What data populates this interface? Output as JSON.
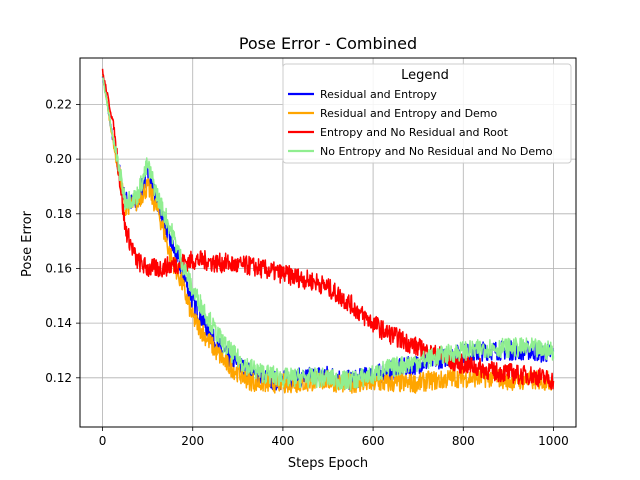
{
  "chart_data": {
    "type": "line",
    "title": "Pose Error - Combined",
    "xlabel": "Steps Epoch",
    "ylabel": "Pose Error",
    "xlim": [
      -50,
      1050
    ],
    "ylim": [
      0.102,
      0.237
    ],
    "xticks": [
      0,
      200,
      400,
      600,
      800,
      1000
    ],
    "yticks": [
      0.12,
      0.14,
      0.16,
      0.18,
      0.2,
      0.22
    ],
    "xtick_labels": [
      "0",
      "200",
      "400",
      "600",
      "800",
      "1000"
    ],
    "ytick_labels": [
      "0.12",
      "0.14",
      "0.16",
      "0.18",
      "0.20",
      "0.22"
    ],
    "grid": true,
    "legend": {
      "title": "Legend",
      "placement": "top-right"
    },
    "series": [
      {
        "name": "Residual and Entropy",
        "color": "#0000ff",
        "x": [
          0,
          25,
          50,
          75,
          100,
          125,
          150,
          175,
          200,
          225,
          250,
          275,
          300,
          325,
          350,
          375,
          400,
          425,
          450,
          475,
          500,
          525,
          550,
          575,
          600,
          625,
          650,
          675,
          700,
          725,
          750,
          775,
          800,
          825,
          850,
          875,
          900,
          925,
          950,
          975,
          1000
        ],
        "y": [
          0.231,
          0.205,
          0.185,
          0.183,
          0.195,
          0.183,
          0.17,
          0.16,
          0.148,
          0.14,
          0.133,
          0.128,
          0.125,
          0.122,
          0.12,
          0.119,
          0.119,
          0.12,
          0.12,
          0.121,
          0.121,
          0.12,
          0.119,
          0.12,
          0.121,
          0.122,
          0.123,
          0.124,
          0.125,
          0.126,
          0.127,
          0.128,
          0.129,
          0.129,
          0.13,
          0.13,
          0.13,
          0.13,
          0.13,
          0.129,
          0.129
        ]
      },
      {
        "name": "Residual and Entropy and Demo",
        "color": "#ffa500",
        "x": [
          0,
          25,
          50,
          75,
          100,
          125,
          150,
          175,
          200,
          225,
          250,
          275,
          300,
          325,
          350,
          375,
          400,
          425,
          450,
          475,
          500,
          525,
          550,
          575,
          600,
          625,
          650,
          675,
          700,
          725,
          750,
          775,
          800,
          825,
          850,
          875,
          900,
          925,
          950,
          975,
          1000
        ],
        "y": [
          0.231,
          0.205,
          0.183,
          0.184,
          0.19,
          0.18,
          0.165,
          0.155,
          0.142,
          0.136,
          0.13,
          0.125,
          0.122,
          0.119,
          0.118,
          0.118,
          0.118,
          0.118,
          0.118,
          0.119,
          0.119,
          0.118,
          0.118,
          0.118,
          0.118,
          0.118,
          0.118,
          0.118,
          0.118,
          0.119,
          0.119,
          0.12,
          0.12,
          0.12,
          0.12,
          0.12,
          0.119,
          0.119,
          0.119,
          0.119,
          0.119
        ]
      },
      {
        "name": "Entropy and No Residual and Root",
        "color": "#ff0000",
        "x": [
          0,
          25,
          50,
          75,
          100,
          125,
          150,
          175,
          200,
          225,
          250,
          275,
          300,
          325,
          350,
          375,
          400,
          425,
          450,
          475,
          500,
          525,
          550,
          575,
          600,
          625,
          650,
          675,
          700,
          725,
          750,
          775,
          800,
          825,
          850,
          875,
          900,
          925,
          950,
          975,
          1000
        ],
        "y": [
          0.232,
          0.212,
          0.175,
          0.163,
          0.16,
          0.16,
          0.161,
          0.162,
          0.163,
          0.163,
          0.162,
          0.162,
          0.161,
          0.161,
          0.16,
          0.159,
          0.158,
          0.157,
          0.156,
          0.155,
          0.153,
          0.15,
          0.147,
          0.143,
          0.14,
          0.137,
          0.135,
          0.133,
          0.131,
          0.129,
          0.128,
          0.126,
          0.125,
          0.124,
          0.123,
          0.122,
          0.122,
          0.121,
          0.121,
          0.12,
          0.119
        ]
      },
      {
        "name": "No Entropy and No Residual and No Demo",
        "color": "#90ee90",
        "x": [
          0,
          25,
          50,
          75,
          100,
          125,
          150,
          175,
          200,
          225,
          250,
          275,
          300,
          325,
          350,
          375,
          400,
          425,
          450,
          475,
          500,
          525,
          550,
          575,
          600,
          625,
          650,
          675,
          700,
          725,
          750,
          775,
          800,
          825,
          850,
          875,
          900,
          925,
          950,
          975,
          1000
        ],
        "y": [
          0.23,
          0.206,
          0.185,
          0.186,
          0.198,
          0.185,
          0.175,
          0.163,
          0.152,
          0.145,
          0.137,
          0.131,
          0.127,
          0.124,
          0.122,
          0.121,
          0.12,
          0.12,
          0.12,
          0.12,
          0.12,
          0.119,
          0.119,
          0.12,
          0.121,
          0.123,
          0.124,
          0.125,
          0.126,
          0.127,
          0.128,
          0.129,
          0.13,
          0.13,
          0.131,
          0.131,
          0.131,
          0.131,
          0.131,
          0.13,
          0.13
        ]
      }
    ]
  }
}
